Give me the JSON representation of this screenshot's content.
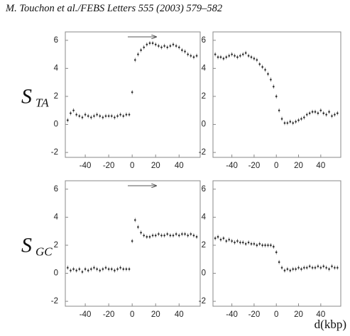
{
  "header": {
    "title": "M. Touchon et al./FEBS Letters 555 (2003) 579–582"
  },
  "chart_data": [
    {
      "type": "scatter",
      "ylabel": "S",
      "ylabel_sub": "TA",
      "x": [
        -55,
        -52.5,
        -50,
        -47.5,
        -45,
        -42.5,
        -40,
        -37.5,
        -35,
        -32.5,
        -30,
        -27.5,
        -25,
        -22.5,
        -20,
        -17.5,
        -15,
        -12.5,
        -10,
        -7.5,
        -5,
        -2.5,
        0,
        2.5,
        5,
        7.5,
        10,
        12.5,
        15,
        17.5,
        20,
        22.5,
        25,
        27.5,
        30,
        32.5,
        35,
        37.5,
        40,
        42.5,
        45,
        47.5,
        50,
        52.5,
        55
      ],
      "values": [
        0.3,
        0.8,
        1.0,
        0.7,
        0.6,
        0.5,
        0.7,
        0.6,
        0.5,
        0.6,
        0.7,
        0.6,
        0.5,
        0.6,
        0.6,
        0.6,
        0.5,
        0.6,
        0.7,
        0.6,
        0.7,
        0.7,
        2.3,
        4.6,
        5.0,
        5.3,
        5.5,
        5.7,
        5.8,
        5.8,
        5.7,
        5.6,
        5.5,
        5.6,
        5.5,
        5.6,
        5.7,
        5.6,
        5.5,
        5.3,
        5.2,
        5.0,
        4.9,
        4.8,
        4.9
      ],
      "xlim": [
        -57,
        58
      ],
      "ylim": [
        -2.35,
        6.6
      ],
      "xticks": [
        -40,
        -20,
        0,
        20,
        40
      ],
      "yticks": [
        -2,
        0,
        2,
        4,
        6
      ]
    },
    {
      "type": "scatter",
      "x": [
        -55,
        -52.5,
        -50,
        -47.5,
        -45,
        -42.5,
        -40,
        -37.5,
        -35,
        -32.5,
        -30,
        -27.5,
        -25,
        -22.5,
        -20,
        -17.5,
        -15,
        -12.5,
        -10,
        -7.5,
        -5,
        -2.5,
        0,
        2.5,
        5,
        7.5,
        10,
        12.5,
        15,
        17.5,
        20,
        22.5,
        25,
        27.5,
        30,
        32.5,
        35,
        37.5,
        40,
        42.5,
        45,
        47.5,
        50,
        52.5,
        55
      ],
      "values": [
        5.0,
        4.8,
        4.8,
        4.7,
        4.8,
        4.9,
        5.0,
        4.9,
        4.8,
        4.9,
        5.0,
        5.1,
        4.9,
        4.8,
        4.7,
        4.6,
        4.3,
        4.1,
        3.9,
        3.6,
        3.2,
        2.7,
        2.0,
        1.0,
        0.4,
        0.1,
        0.1,
        0.2,
        0.1,
        0.2,
        0.3,
        0.4,
        0.5,
        0.7,
        0.8,
        0.9,
        0.9,
        0.8,
        1.0,
        0.8,
        0.7,
        0.9,
        0.6,
        0.7,
        0.8
      ],
      "xlim": [
        -57,
        58
      ],
      "ylim": [
        -2.35,
        6.6
      ],
      "xticks": [
        -40,
        -20,
        0,
        20,
        40
      ],
      "yticks": [
        -2,
        0,
        2,
        4,
        6
      ]
    },
    {
      "type": "scatter",
      "ylabel": "S",
      "ylabel_sub": "GC",
      "x": [
        -55,
        -52.5,
        -50,
        -47.5,
        -45,
        -42.5,
        -40,
        -37.5,
        -35,
        -32.5,
        -30,
        -27.5,
        -25,
        -22.5,
        -20,
        -17.5,
        -15,
        -12.5,
        -10,
        -7.5,
        -5,
        -2.5,
        0,
        2.5,
        5,
        7.5,
        10,
        12.5,
        15,
        17.5,
        20,
        22.5,
        25,
        27.5,
        30,
        32.5,
        35,
        37.5,
        40,
        42.5,
        45,
        47.5,
        50,
        52.5,
        55
      ],
      "values": [
        0.4,
        0.2,
        0.3,
        0.2,
        0.3,
        0.1,
        0.3,
        0.2,
        0.3,
        0.4,
        0.3,
        0.2,
        0.3,
        0.4,
        0.3,
        0.3,
        0.2,
        0.3,
        0.4,
        0.3,
        0.3,
        0.3,
        2.3,
        3.8,
        3.3,
        2.9,
        2.7,
        2.6,
        2.6,
        2.7,
        2.7,
        2.8,
        2.7,
        2.7,
        2.8,
        2.7,
        2.7,
        2.8,
        2.7,
        2.8,
        2.8,
        2.7,
        2.8,
        2.7,
        2.6
      ],
      "xlim": [
        -57,
        58
      ],
      "ylim": [
        -2.35,
        6.6
      ],
      "xticks": [
        -40,
        -20,
        0,
        20,
        40
      ],
      "yticks": [
        -2,
        0,
        2,
        4,
        6
      ]
    },
    {
      "type": "scatter",
      "xlabel": "d(kbp)",
      "x": [
        -55,
        -52.5,
        -50,
        -47.5,
        -45,
        -42.5,
        -40,
        -37.5,
        -35,
        -32.5,
        -30,
        -27.5,
        -25,
        -22.5,
        -20,
        -17.5,
        -15,
        -12.5,
        -10,
        -7.5,
        -5,
        -2.5,
        0,
        2.5,
        5,
        7.5,
        10,
        12.5,
        15,
        17.5,
        20,
        22.5,
        25,
        27.5,
        30,
        32.5,
        35,
        37.5,
        40,
        42.5,
        45,
        47.5,
        50,
        52.5,
        55
      ],
      "values": [
        2.5,
        2.6,
        2.4,
        2.5,
        2.3,
        2.4,
        2.3,
        2.2,
        2.3,
        2.2,
        2.2,
        2.1,
        2.2,
        2.1,
        2.1,
        2.0,
        2.1,
        2.0,
        2.0,
        2.0,
        2.0,
        1.9,
        1.5,
        0.8,
        0.4,
        0.2,
        0.3,
        0.2,
        0.3,
        0.3,
        0.4,
        0.3,
        0.4,
        0.4,
        0.5,
        0.4,
        0.4,
        0.5,
        0.4,
        0.5,
        0.4,
        0.3,
        0.5,
        0.4,
        0.4
      ],
      "xlim": [
        -57,
        58
      ],
      "ylim": [
        -2.35,
        6.6
      ],
      "xticks": [
        -40,
        -20,
        0,
        20,
        40
      ],
      "yticks": [
        -2,
        0,
        2,
        4,
        6
      ]
    }
  ]
}
